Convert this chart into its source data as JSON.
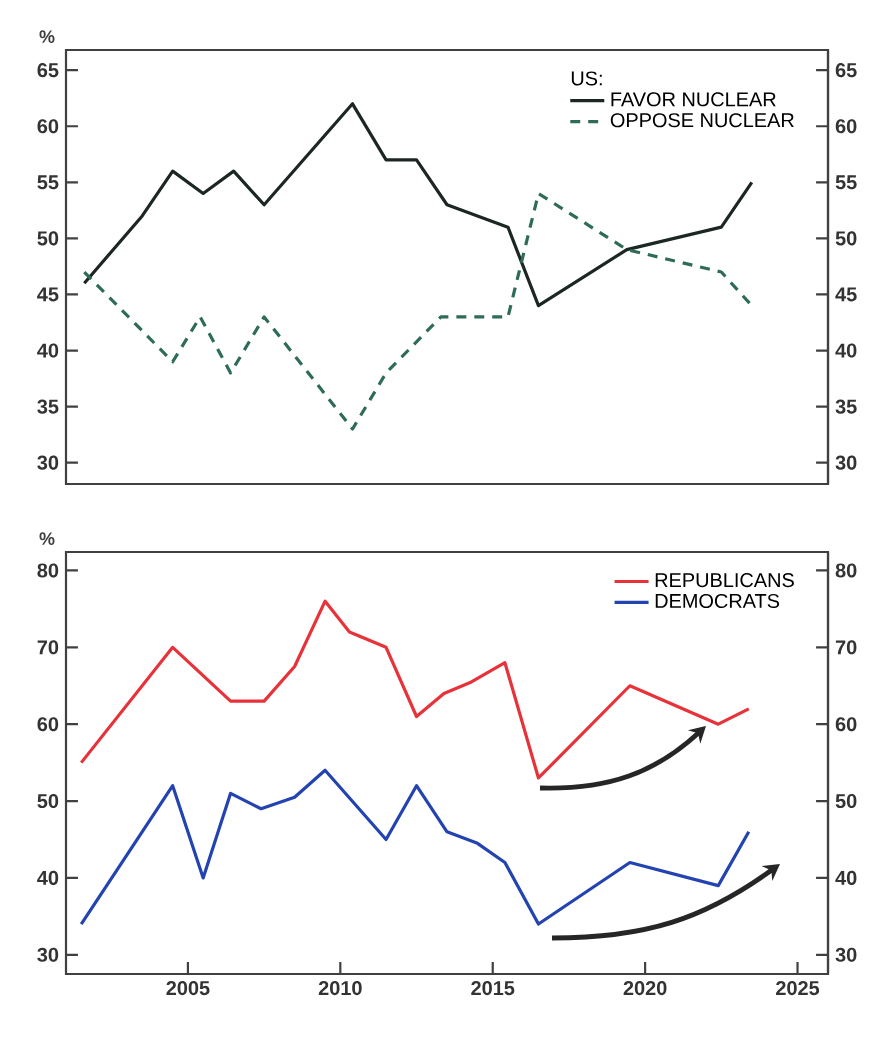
{
  "chart_data": [
    {
      "type": "line",
      "ylabel": "%",
      "legend_title": "US:",
      "legend": "top right",
      "tick_labels": "y",
      "xlim": [
        2001,
        2026
      ],
      "ylim": [
        28.1,
        66.8
      ],
      "yticks": [
        30,
        35,
        40,
        45,
        50,
        55,
        60,
        65
      ],
      "y2lim": [
        28.1,
        66.8
      ],
      "y2ticks": [
        30,
        35,
        40,
        45,
        50,
        55,
        60,
        65
      ],
      "series": [
        {
          "name": "FAVOR NUCLEAR",
          "color": "#1c2622",
          "line_style": "solid",
          "x": [
            2001.6,
            2003.5,
            2004.5,
            2005.5,
            2006.5,
            2007.5,
            2010.4,
            2011.5,
            2012.5,
            2013.5,
            2015.5,
            2016.5,
            2019.4,
            2022.5,
            2023.5
          ],
          "values": [
            46,
            52,
            56,
            54,
            56,
            53,
            62,
            57,
            57,
            53,
            51,
            44,
            49,
            51,
            55
          ]
        },
        {
          "name": "OPPOSE NUCLEAR",
          "color": "#2e6b58",
          "line_style": "dashed",
          "x": [
            2001.6,
            2004.5,
            2005.4,
            2006.4,
            2007.5,
            2010.4,
            2011.5,
            2013.3,
            2015.5,
            2016.5,
            2019.4,
            2022.5,
            2023.5
          ],
          "values": [
            47,
            39,
            43,
            38,
            43,
            33,
            38,
            43,
            43,
            54,
            49,
            47,
            44
          ]
        }
      ]
    },
    {
      "type": "line",
      "ylabel": "%",
      "legend": "top right",
      "xlim": [
        2001,
        2026
      ],
      "ylim": [
        27.5,
        82.4
      ],
      "xticks": [
        2005,
        2010,
        2015,
        2020,
        2025
      ],
      "yticks": [
        30,
        40,
        50,
        60,
        70,
        80
      ],
      "y2lim": [
        27.5,
        82.4
      ],
      "y2ticks": [
        30,
        40,
        50,
        60,
        70,
        80
      ],
      "series": [
        {
          "name": "REPUBLICANS",
          "color": "#e8323a",
          "x": [
            2001.5,
            2004.5,
            2006.4,
            2007.5,
            2008.5,
            2009.5,
            2010.3,
            2011.5,
            2012.5,
            2013.4,
            2014.3,
            2015.4,
            2016.5,
            2019.5,
            2022.4,
            2023.4
          ],
          "values": [
            55,
            70,
            63,
            63,
            67.5,
            76,
            72,
            70,
            61,
            64,
            65.5,
            68,
            53,
            65,
            60,
            62
          ]
        },
        {
          "name": "DEMOCRATS",
          "color": "#2344b0",
          "x": [
            2001.5,
            2004.5,
            2005.5,
            2006.4,
            2007.4,
            2008.5,
            2009.5,
            2011.5,
            2012.5,
            2013.5,
            2014.5,
            2015.4,
            2016.5,
            2019.5,
            2022.4,
            2023.4
          ],
          "values": [
            34,
            52,
            40,
            51,
            49,
            50.5,
            54,
            45,
            52,
            46,
            44.5,
            42,
            34,
            42,
            39,
            46
          ]
        }
      ]
    }
  ]
}
